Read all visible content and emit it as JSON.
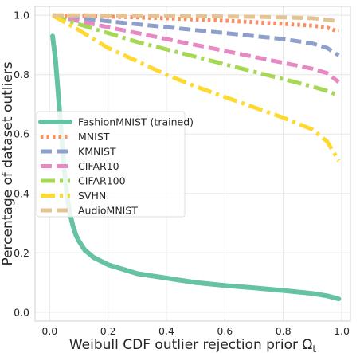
{
  "chart_data": {
    "type": "line",
    "title": "",
    "xlabel": "Weibull CDF outlier rejection prior Ω",
    "xlabel_subscript": "t",
    "ylabel": "Percentage of dataset outliers",
    "xlim": [
      -0.05,
      1.03
    ],
    "ylim": [
      -0.03,
      1.03
    ],
    "xticks": [
      0.0,
      0.2,
      0.4,
      0.6,
      0.8,
      1.0
    ],
    "xtick_labels": [
      "0.0",
      "0.2",
      "0.4",
      "0.6",
      "0.8",
      "1.0"
    ],
    "yticks": [
      0.0,
      0.2,
      0.4,
      0.6,
      0.8,
      1.0
    ],
    "ytick_labels": [
      "0.0",
      "0.2",
      "0.4",
      "0.6",
      "0.8",
      "1.0"
    ],
    "grid": true,
    "legend_position": "center-left",
    "series": [
      {
        "name": "FashionMNIST (trained)",
        "color": "#66c2a5",
        "dash": "solid",
        "x": [
          0.01,
          0.02,
          0.03,
          0.04,
          0.05,
          0.06,
          0.07,
          0.08,
          0.09,
          0.1,
          0.12,
          0.15,
          0.2,
          0.25,
          0.3,
          0.4,
          0.5,
          0.6,
          0.7,
          0.8,
          0.9,
          0.95,
          0.99
        ],
        "y": [
          0.93,
          0.85,
          0.73,
          0.6,
          0.48,
          0.39,
          0.33,
          0.29,
          0.26,
          0.24,
          0.21,
          0.185,
          0.16,
          0.145,
          0.13,
          0.115,
          0.1,
          0.09,
          0.082,
          0.073,
          0.063,
          0.055,
          0.045
        ]
      },
      {
        "name": "MNIST",
        "color": "#fc8d62",
        "dash": "dotted",
        "x": [
          0.01,
          0.1,
          0.2,
          0.3,
          0.4,
          0.5,
          0.6,
          0.7,
          0.8,
          0.9,
          0.95,
          0.99
        ],
        "y": [
          1.0,
          0.998,
          0.996,
          0.993,
          0.99,
          0.986,
          0.982,
          0.977,
          0.971,
          0.965,
          0.958,
          0.945
        ]
      },
      {
        "name": "KMNIST",
        "color": "#8da0cb",
        "dash": "dashed",
        "x": [
          0.01,
          0.1,
          0.2,
          0.3,
          0.4,
          0.5,
          0.6,
          0.7,
          0.8,
          0.9,
          0.95,
          0.99
        ],
        "y": [
          1.0,
          0.99,
          0.98,
          0.97,
          0.96,
          0.95,
          0.94,
          0.93,
          0.92,
          0.905,
          0.89,
          0.865
        ]
      },
      {
        "name": "CIFAR10",
        "color": "#e78ac3",
        "dash": "dashed",
        "x": [
          0.01,
          0.1,
          0.2,
          0.3,
          0.4,
          0.5,
          0.6,
          0.7,
          0.8,
          0.9,
          0.95,
          0.99
        ],
        "y": [
          1.0,
          0.98,
          0.96,
          0.94,
          0.92,
          0.9,
          0.88,
          0.86,
          0.84,
          0.82,
          0.805,
          0.775
        ]
      },
      {
        "name": "CIFAR100",
        "color": "#a6d854",
        "dash": "dashdot",
        "x": [
          0.01,
          0.1,
          0.2,
          0.3,
          0.4,
          0.5,
          0.6,
          0.7,
          0.8,
          0.9,
          0.95,
          0.99
        ],
        "y": [
          1.0,
          0.97,
          0.94,
          0.91,
          0.885,
          0.86,
          0.835,
          0.81,
          0.785,
          0.76,
          0.745,
          0.73
        ]
      },
      {
        "name": "SVHN",
        "color": "#ffd92f",
        "dash": "dashdot",
        "x": [
          0.01,
          0.1,
          0.2,
          0.3,
          0.4,
          0.5,
          0.6,
          0.7,
          0.8,
          0.9,
          0.95,
          0.99
        ],
        "y": [
          1.0,
          0.95,
          0.89,
          0.845,
          0.8,
          0.76,
          0.725,
          0.69,
          0.655,
          0.615,
          0.575,
          0.51
        ]
      },
      {
        "name": "AudioMNIST",
        "color": "#e5c494",
        "dash": "dashed",
        "x": [
          0.01,
          0.1,
          0.2,
          0.3,
          0.4,
          0.5,
          0.6,
          0.7,
          0.8,
          0.9,
          0.95,
          0.99
        ],
        "y": [
          1.0,
          1.0,
          0.999,
          0.999,
          0.998,
          0.997,
          0.996,
          0.995,
          0.993,
          0.99,
          0.985,
          0.98
        ]
      }
    ]
  }
}
